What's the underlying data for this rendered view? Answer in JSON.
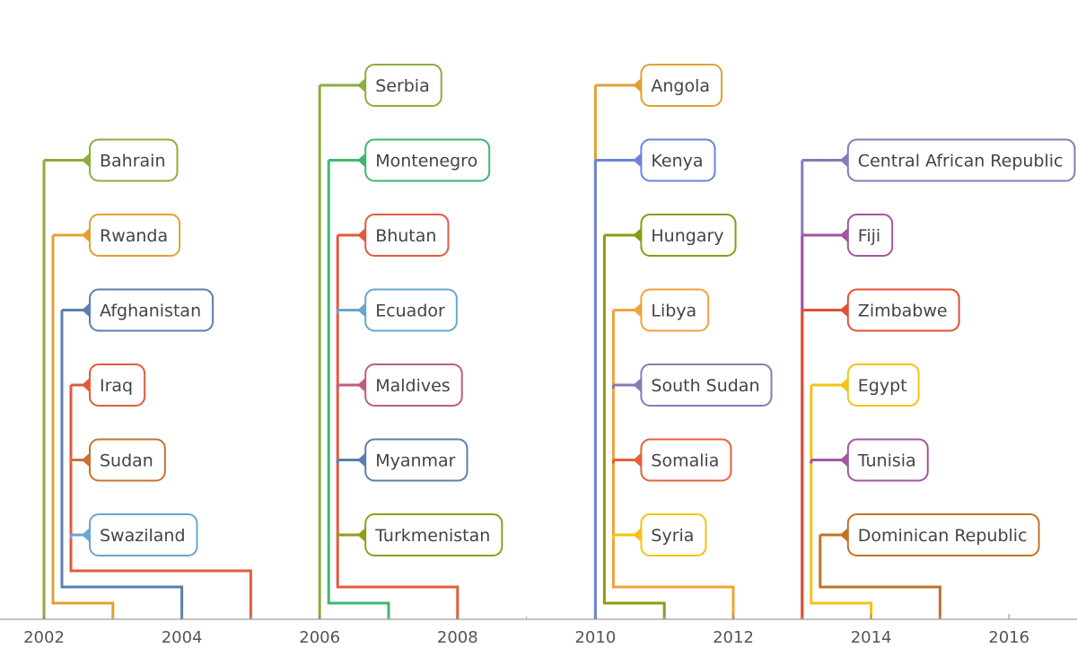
{
  "chart_data": {
    "type": "timeline",
    "title": "",
    "xlabel": "",
    "ylabel": "",
    "x_range": [
      2001.4,
      2017.0
    ],
    "x_ticks": [
      2002,
      2004,
      2006,
      2008,
      2010,
      2012,
      2014,
      2016
    ],
    "grid": false,
    "groups": [
      {
        "items": [
          {
            "label": "Bahrain",
            "start": 2002.0,
            "end": 2002.0,
            "color": "#8bad3d"
          },
          {
            "label": "Rwanda",
            "start": 2002.0,
            "end": 2003.0,
            "color": "#e0a132"
          },
          {
            "label": "Afghanistan",
            "start": 2002.0,
            "end": 2004.0,
            "color": "#5a7fae"
          },
          {
            "label": "Iraq",
            "start": 2002.0,
            "end": 2005.0,
            "color": "#e05c3e"
          },
          {
            "label": "Sudan",
            "start": 2002.0,
            "end": 2005.0,
            "color": "#c9722f"
          },
          {
            "label": "Swaziland",
            "start": 2002.0,
            "end": 2005.0,
            "color": "#6aa6cf"
          }
        ]
      },
      {
        "items": [
          {
            "label": "Serbia",
            "start": 2006.0,
            "end": 2006.0,
            "color": "#8bad3d"
          },
          {
            "label": "Montenegro",
            "start": 2006.0,
            "end": 2007.0,
            "color": "#3fb771"
          },
          {
            "label": "Bhutan",
            "start": 2006.0,
            "end": 2008.0,
            "color": "#e05c3e"
          },
          {
            "label": "Ecuador",
            "start": 2006.0,
            "end": 2008.0,
            "color": "#6aa6cf"
          },
          {
            "label": "Maldives",
            "start": 2006.0,
            "end": 2008.0,
            "color": "#c05c7e"
          },
          {
            "label": "Myanmar",
            "start": 2006.0,
            "end": 2008.0,
            "color": "#5a7fae"
          },
          {
            "label": "Turkmenistan",
            "start": 2006.0,
            "end": 2008.0,
            "color": "#949c1c"
          }
        ]
      },
      {
        "items": [
          {
            "label": "Angola",
            "start": 2010.0,
            "end": 2010.0,
            "color": "#e0a132"
          },
          {
            "label": "Kenya",
            "start": 2010.0,
            "end": 2010.0,
            "color": "#6a85d6"
          },
          {
            "label": "Hungary",
            "start": 2010.0,
            "end": 2011.0,
            "color": "#8c9a16"
          },
          {
            "label": "Libya",
            "start": 2010.0,
            "end": 2012.0,
            "color": "#f2a23a"
          },
          {
            "label": "South Sudan",
            "start": 2010.0,
            "end": 2012.0,
            "color": "#8b78b6"
          },
          {
            "label": "Somalia",
            "start": 2010.0,
            "end": 2012.0,
            "color": "#e6603c"
          },
          {
            "label": "Syria",
            "start": 2010.0,
            "end": 2012.0,
            "color": "#f2c414"
          }
        ]
      },
      {
        "items": [
          {
            "label": "Central African Republic",
            "start": 2013.0,
            "end": 2013.0,
            "color": "#8b78b6"
          },
          {
            "label": "Fiji",
            "start": 2013.0,
            "end": 2013.0,
            "color": "#a2569e"
          },
          {
            "label": "Zimbabwe",
            "start": 2013.0,
            "end": 2013.0,
            "color": "#e05036"
          },
          {
            "label": "Egypt",
            "start": 2013.0,
            "end": 2014.0,
            "color": "#f2c414"
          },
          {
            "label": "Tunisia",
            "start": 2013.0,
            "end": 2014.0,
            "color": "#a2569e"
          },
          {
            "label": "Dominican Republic",
            "start": 2013.0,
            "end": 2015.0,
            "color": "#c07228"
          }
        ]
      }
    ]
  }
}
